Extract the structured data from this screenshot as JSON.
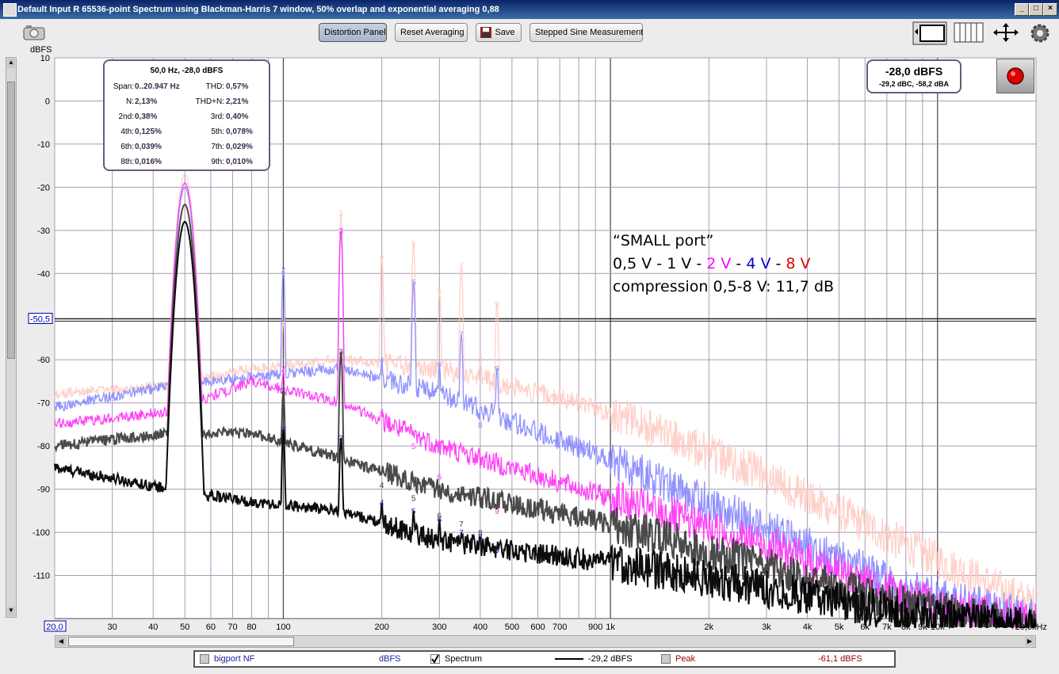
{
  "window": {
    "title": "Default Input R 65536-point Spectrum using Blackman-Harris 7 window, 50% overlap and exponential averaging 0,88"
  },
  "toolbar": {
    "distortion_label": "Distortion Panel",
    "reset_label": "Reset Averaging",
    "save_label": "Save",
    "stepped_label": "Stepped Sine Measurement"
  },
  "distortion_panel": {
    "header": "50,0 Hz, -28,0 dBFS",
    "span_label": "Span:",
    "span_value": "0..20.947 Hz",
    "thd_label": "THD:",
    "thd_value": "0,57%",
    "n_label": "N:",
    "n_value": "2,13%",
    "thdn_label": "THD+N:",
    "thdn_value": "2,21%",
    "h2_label": "2nd:",
    "h2_value": "0,38%",
    "h3_label": "3rd:",
    "h3_value": "0,40%",
    "h4_label": "4th:",
    "h4_value": "0,125%",
    "h5_label": "5th:",
    "h5_value": "0,078%",
    "h6_label": "6th:",
    "h6_value": "0,039%",
    "h7_label": "7th:",
    "h7_value": "0,029%",
    "h8_label": "8th:",
    "h8_value": "0,016%",
    "h9_label": "9th:",
    "h9_value": "0,010%"
  },
  "level_readout": {
    "main": "-28,0 dBFS",
    "sub": "-29,2 dBC, -58,2 dBA"
  },
  "annotation": {
    "line1": "“SMALL port”",
    "l2_a": "0,5 V - 1 V  - ",
    "l2_b": "2 V",
    "l2_c": "  - ",
    "l2_d": "4",
    "l2_e": " V",
    "l2_f": " - ",
    "l2_g": "8 V",
    "line3": "compression 0,5-8 V: 11,7 dB"
  },
  "legend": {
    "item1_name": "bigport NF",
    "item1_unit": "dBFS",
    "item2_name": "Spectrum",
    "item2_value": "-29,2 dBFS",
    "item3_name": "Peak",
    "item3_value": "-61,1 dBFS"
  },
  "colors": {
    "c05": "#000000",
    "c1": "#404040",
    "c2": "#ff3af5",
    "c4": "#8a8cff",
    "c8": "#ffc8c0",
    "accent_blue": "#0000cc",
    "accent_red": "#e00000",
    "accent_magenta": "#ff00ff"
  },
  "chart_data": {
    "type": "line",
    "xscale": "log",
    "xlim": [
      20,
      20000
    ],
    "ylim": [
      -120,
      10
    ],
    "ylabel": "dBFS",
    "y_ticks": [
      "10",
      "0",
      "-10",
      "-20",
      "-30",
      "-40",
      "-50,5",
      "-60",
      "-70",
      "-80",
      "-90",
      "-100",
      "-110"
    ],
    "y_tick_values": [
      10,
      0,
      -10,
      -20,
      -30,
      -40,
      -50.5,
      -60,
      -70,
      -80,
      -90,
      -100,
      -110
    ],
    "x_ticks": [
      "20,0",
      "30",
      "40",
      "50",
      "60",
      "70",
      "80",
      "100",
      "200",
      "300",
      "400",
      "500",
      "600",
      "700",
      "900",
      "1k",
      "2k",
      "3k",
      "4k",
      "5k",
      "6k",
      "7k",
      "8k",
      "9k",
      "10k",
      "20,0kHz"
    ],
    "x_tick_values": [
      20,
      30,
      40,
      50,
      60,
      70,
      80,
      100,
      200,
      300,
      400,
      500,
      600,
      700,
      900,
      1000,
      2000,
      3000,
      4000,
      5000,
      6000,
      7000,
      8000,
      9000,
      10000,
      20000
    ],
    "harmonic_labels": [
      "1",
      "2",
      "3",
      "4",
      "5",
      "6",
      "7",
      "8",
      "9"
    ],
    "series": [
      {
        "name": "0,5 V",
        "color": "#000000",
        "fundamental": -28,
        "harmonics": [
          -76,
          -78,
          -93,
          -95,
          -97,
          -100,
          -101,
          -104
        ],
        "floor": [
          [
            20,
            -85
          ],
          [
            45,
            -90
          ],
          [
            80,
            -93
          ],
          [
            150,
            -95
          ],
          [
            300,
            -102
          ],
          [
            1000,
            -107
          ],
          [
            3000,
            -113
          ],
          [
            8000,
            -119
          ],
          [
            20000,
            -122
          ]
        ]
      },
      {
        "name": "1 V",
        "color": "#404040",
        "fundamental": -24,
        "harmonics": [
          -67,
          -58,
          -89,
          -92,
          -96,
          -98,
          -100,
          -104
        ],
        "floor": [
          [
            20,
            -80
          ],
          [
            45,
            -77
          ],
          [
            80,
            -77
          ],
          [
            150,
            -83
          ],
          [
            300,
            -90
          ],
          [
            1000,
            -98
          ],
          [
            3000,
            -108
          ],
          [
            8000,
            -117
          ],
          [
            20000,
            -122
          ]
        ]
      },
      {
        "name": "2 V",
        "color": "#ff3af5",
        "fundamental": -19,
        "harmonics": [
          -62,
          -30,
          -72,
          -80,
          -87,
          -90,
          -92,
          -95
        ],
        "floor": [
          [
            20,
            -75
          ],
          [
            45,
            -72
          ],
          [
            80,
            -65
          ],
          [
            150,
            -70
          ],
          [
            300,
            -80
          ],
          [
            1000,
            -92
          ],
          [
            3000,
            -103
          ],
          [
            8000,
            -115
          ],
          [
            20000,
            -121
          ]
        ]
      },
      {
        "name": "4 V",
        "color": "#8a8cff",
        "fundamental": -20,
        "harmonics": [
          -39,
          -30,
          -60,
          -42,
          -61,
          -54,
          -75,
          -62
        ],
        "floor": [
          [
            20,
            -71
          ],
          [
            45,
            -66
          ],
          [
            80,
            -64
          ],
          [
            150,
            -62
          ],
          [
            300,
            -68
          ],
          [
            1000,
            -83
          ],
          [
            3000,
            -99
          ],
          [
            8000,
            -113
          ],
          [
            20000,
            -120
          ]
        ]
      },
      {
        "name": "8 V",
        "color": "#ffc8c0",
        "fundamental": -17,
        "harmonics": [
          -51,
          -26,
          -36,
          -33,
          -44,
          -38,
          -60,
          -47
        ],
        "floor": [
          [
            20,
            -68
          ],
          [
            45,
            -66
          ],
          [
            80,
            -62
          ],
          [
            150,
            -60
          ],
          [
            300,
            -62
          ],
          [
            1000,
            -72
          ],
          [
            3000,
            -87
          ],
          [
            8000,
            -103
          ],
          [
            20000,
            -117
          ]
        ]
      }
    ]
  }
}
